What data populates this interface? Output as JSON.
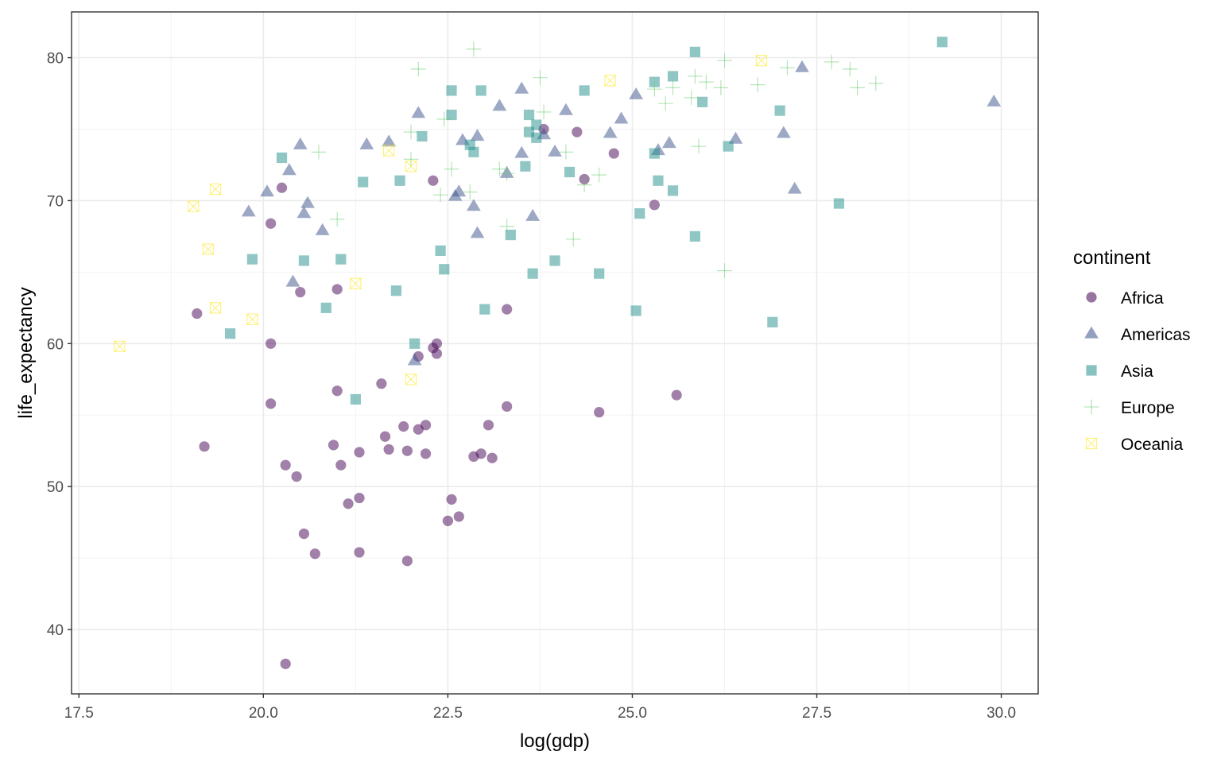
{
  "chart_data": {
    "type": "scatter",
    "title": "",
    "xlabel": "log(gdp)",
    "ylabel": "life_expectancy",
    "xlim": [
      17.4,
      30.5
    ],
    "ylim": [
      35.5,
      83.2
    ],
    "x_ticks": [
      17.5,
      20.0,
      22.5,
      25.0,
      27.5,
      30.0
    ],
    "x_tick_labels": [
      "17.5",
      "20.0",
      "22.5",
      "25.0",
      "27.5",
      "30.0"
    ],
    "y_ticks": [
      40,
      50,
      60,
      70,
      80
    ],
    "y_tick_labels": [
      "40",
      "50",
      "60",
      "70",
      "80"
    ],
    "grid": true,
    "legend": {
      "title": "continent",
      "position": "right"
    },
    "series": [
      {
        "name": "Africa",
        "marker": "circle",
        "color": "#440154",
        "points": [
          [
            19.1,
            62.1
          ],
          [
            19.2,
            52.8
          ],
          [
            20.1,
            68.4
          ],
          [
            20.1,
            60.0
          ],
          [
            20.1,
            55.8
          ],
          [
            20.25,
            70.9
          ],
          [
            20.3,
            51.5
          ],
          [
            20.3,
            37.6
          ],
          [
            20.45,
            50.7
          ],
          [
            20.5,
            63.6
          ],
          [
            20.55,
            46.7
          ],
          [
            20.7,
            45.3
          ],
          [
            20.95,
            52.9
          ],
          [
            21.0,
            56.7
          ],
          [
            21.0,
            63.8
          ],
          [
            21.05,
            51.5
          ],
          [
            21.15,
            48.8
          ],
          [
            21.3,
            52.4
          ],
          [
            21.3,
            49.2
          ],
          [
            21.3,
            45.4
          ],
          [
            21.6,
            57.2
          ],
          [
            21.65,
            53.5
          ],
          [
            21.7,
            52.6
          ],
          [
            21.9,
            54.2
          ],
          [
            21.95,
            52.5
          ],
          [
            21.95,
            44.8
          ],
          [
            22.1,
            59.1
          ],
          [
            22.1,
            54.0
          ],
          [
            22.2,
            54.3
          ],
          [
            22.2,
            52.3
          ],
          [
            22.3,
            71.4
          ],
          [
            22.3,
            59.7
          ],
          [
            22.35,
            60.0
          ],
          [
            22.35,
            59.3
          ],
          [
            22.5,
            47.6
          ],
          [
            22.55,
            49.1
          ],
          [
            22.65,
            47.9
          ],
          [
            22.85,
            52.1
          ],
          [
            22.95,
            52.3
          ],
          [
            23.05,
            54.3
          ],
          [
            23.1,
            52.0
          ],
          [
            23.3,
            62.4
          ],
          [
            23.3,
            55.6
          ],
          [
            23.8,
            75.0
          ],
          [
            24.25,
            74.8
          ],
          [
            24.35,
            71.5
          ],
          [
            24.55,
            55.2
          ],
          [
            24.75,
            73.3
          ],
          [
            25.3,
            69.7
          ],
          [
            25.6,
            56.4
          ]
        ]
      },
      {
        "name": "Americas",
        "marker": "triangle",
        "color": "#3b528b",
        "points": [
          [
            19.8,
            69.2
          ],
          [
            20.05,
            70.6
          ],
          [
            20.35,
            72.1
          ],
          [
            20.4,
            64.3
          ],
          [
            20.5,
            73.9
          ],
          [
            20.55,
            69.1
          ],
          [
            20.6,
            69.8
          ],
          [
            20.8,
            67.9
          ],
          [
            21.4,
            73.9
          ],
          [
            21.7,
            74.1
          ],
          [
            22.05,
            58.8
          ],
          [
            22.1,
            76.1
          ],
          [
            22.6,
            70.3
          ],
          [
            22.65,
            70.6
          ],
          [
            22.7,
            74.2
          ],
          [
            22.85,
            69.6
          ],
          [
            22.9,
            67.7
          ],
          [
            22.9,
            74.5
          ],
          [
            23.2,
            76.6
          ],
          [
            23.3,
            71.9
          ],
          [
            23.5,
            77.8
          ],
          [
            23.5,
            73.3
          ],
          [
            23.65,
            68.9
          ],
          [
            23.8,
            74.6
          ],
          [
            23.95,
            73.4
          ],
          [
            24.1,
            76.3
          ],
          [
            24.7,
            74.7
          ],
          [
            24.85,
            75.7
          ],
          [
            25.05,
            77.4
          ],
          [
            25.35,
            73.5
          ],
          [
            25.5,
            74.0
          ],
          [
            26.4,
            74.3
          ],
          [
            27.05,
            74.7
          ],
          [
            27.2,
            70.8
          ],
          [
            27.3,
            79.3
          ],
          [
            29.9,
            76.9
          ]
        ]
      },
      {
        "name": "Asia",
        "marker": "square",
        "color": "#21908c",
        "points": [
          [
            19.55,
            60.7
          ],
          [
            19.85,
            65.9
          ],
          [
            20.25,
            73.0
          ],
          [
            20.55,
            65.8
          ],
          [
            20.85,
            62.5
          ],
          [
            21.05,
            65.9
          ],
          [
            21.25,
            56.1
          ],
          [
            21.35,
            71.3
          ],
          [
            21.8,
            63.7
          ],
          [
            21.85,
            71.4
          ],
          [
            22.05,
            60.0
          ],
          [
            22.15,
            74.5
          ],
          [
            22.4,
            66.5
          ],
          [
            22.45,
            65.2
          ],
          [
            22.55,
            77.7
          ],
          [
            22.55,
            76.0
          ],
          [
            22.8,
            73.9
          ],
          [
            22.85,
            73.4
          ],
          [
            22.95,
            77.7
          ],
          [
            23.0,
            62.4
          ],
          [
            23.35,
            67.6
          ],
          [
            23.55,
            72.4
          ],
          [
            23.6,
            76.0
          ],
          [
            23.6,
            74.8
          ],
          [
            23.65,
            64.9
          ],
          [
            23.7,
            75.3
          ],
          [
            23.7,
            74.4
          ],
          [
            23.95,
            65.8
          ],
          [
            24.15,
            72.0
          ],
          [
            24.35,
            77.7
          ],
          [
            24.55,
            64.9
          ],
          [
            25.05,
            62.3
          ],
          [
            25.1,
            69.1
          ],
          [
            25.3,
            78.3
          ],
          [
            25.3,
            73.3
          ],
          [
            25.35,
            71.4
          ],
          [
            25.55,
            78.7
          ],
          [
            25.55,
            70.7
          ],
          [
            25.85,
            80.4
          ],
          [
            25.85,
            67.5
          ],
          [
            25.95,
            76.9
          ],
          [
            26.3,
            73.8
          ],
          [
            26.9,
            61.5
          ],
          [
            27.0,
            76.3
          ],
          [
            27.8,
            69.8
          ],
          [
            29.2,
            81.1
          ]
        ]
      },
      {
        "name": "Europe",
        "marker": "plus",
        "color": "#5ec962",
        "points": [
          [
            20.75,
            73.4
          ],
          [
            21.0,
            68.7
          ],
          [
            22.0,
            74.8
          ],
          [
            22.0,
            72.9
          ],
          [
            22.1,
            79.2
          ],
          [
            22.4,
            70.4
          ],
          [
            22.45,
            75.7
          ],
          [
            22.55,
            72.2
          ],
          [
            22.8,
            70.6
          ],
          [
            22.85,
            80.6
          ],
          [
            23.2,
            72.2
          ],
          [
            23.3,
            68.2
          ],
          [
            23.3,
            71.9
          ],
          [
            23.75,
            78.6
          ],
          [
            23.8,
            76.2
          ],
          [
            24.1,
            73.4
          ],
          [
            24.2,
            67.3
          ],
          [
            24.35,
            71.1
          ],
          [
            24.55,
            71.8
          ],
          [
            25.3,
            77.8
          ],
          [
            25.45,
            76.8
          ],
          [
            25.55,
            77.9
          ],
          [
            25.8,
            77.2
          ],
          [
            25.85,
            78.7
          ],
          [
            25.9,
            73.8
          ],
          [
            26.0,
            78.3
          ],
          [
            26.2,
            77.9
          ],
          [
            26.25,
            79.8
          ],
          [
            26.25,
            65.1
          ],
          [
            26.7,
            78.1
          ],
          [
            27.1,
            79.3
          ],
          [
            27.7,
            79.7
          ],
          [
            27.95,
            79.2
          ],
          [
            28.05,
            77.9
          ],
          [
            28.3,
            78.2
          ]
        ]
      },
      {
        "name": "Oceania",
        "marker": "square-cross",
        "color": "#fde725",
        "points": [
          [
            18.05,
            59.8
          ],
          [
            19.05,
            69.6
          ],
          [
            19.25,
            66.6
          ],
          [
            19.35,
            70.8
          ],
          [
            19.35,
            62.5
          ],
          [
            19.85,
            61.7
          ],
          [
            21.25,
            64.2
          ],
          [
            21.7,
            73.5
          ],
          [
            22.0,
            72.4
          ],
          [
            22.0,
            57.5
          ],
          [
            24.7,
            78.4
          ],
          [
            26.75,
            79.8
          ]
        ]
      }
    ]
  }
}
